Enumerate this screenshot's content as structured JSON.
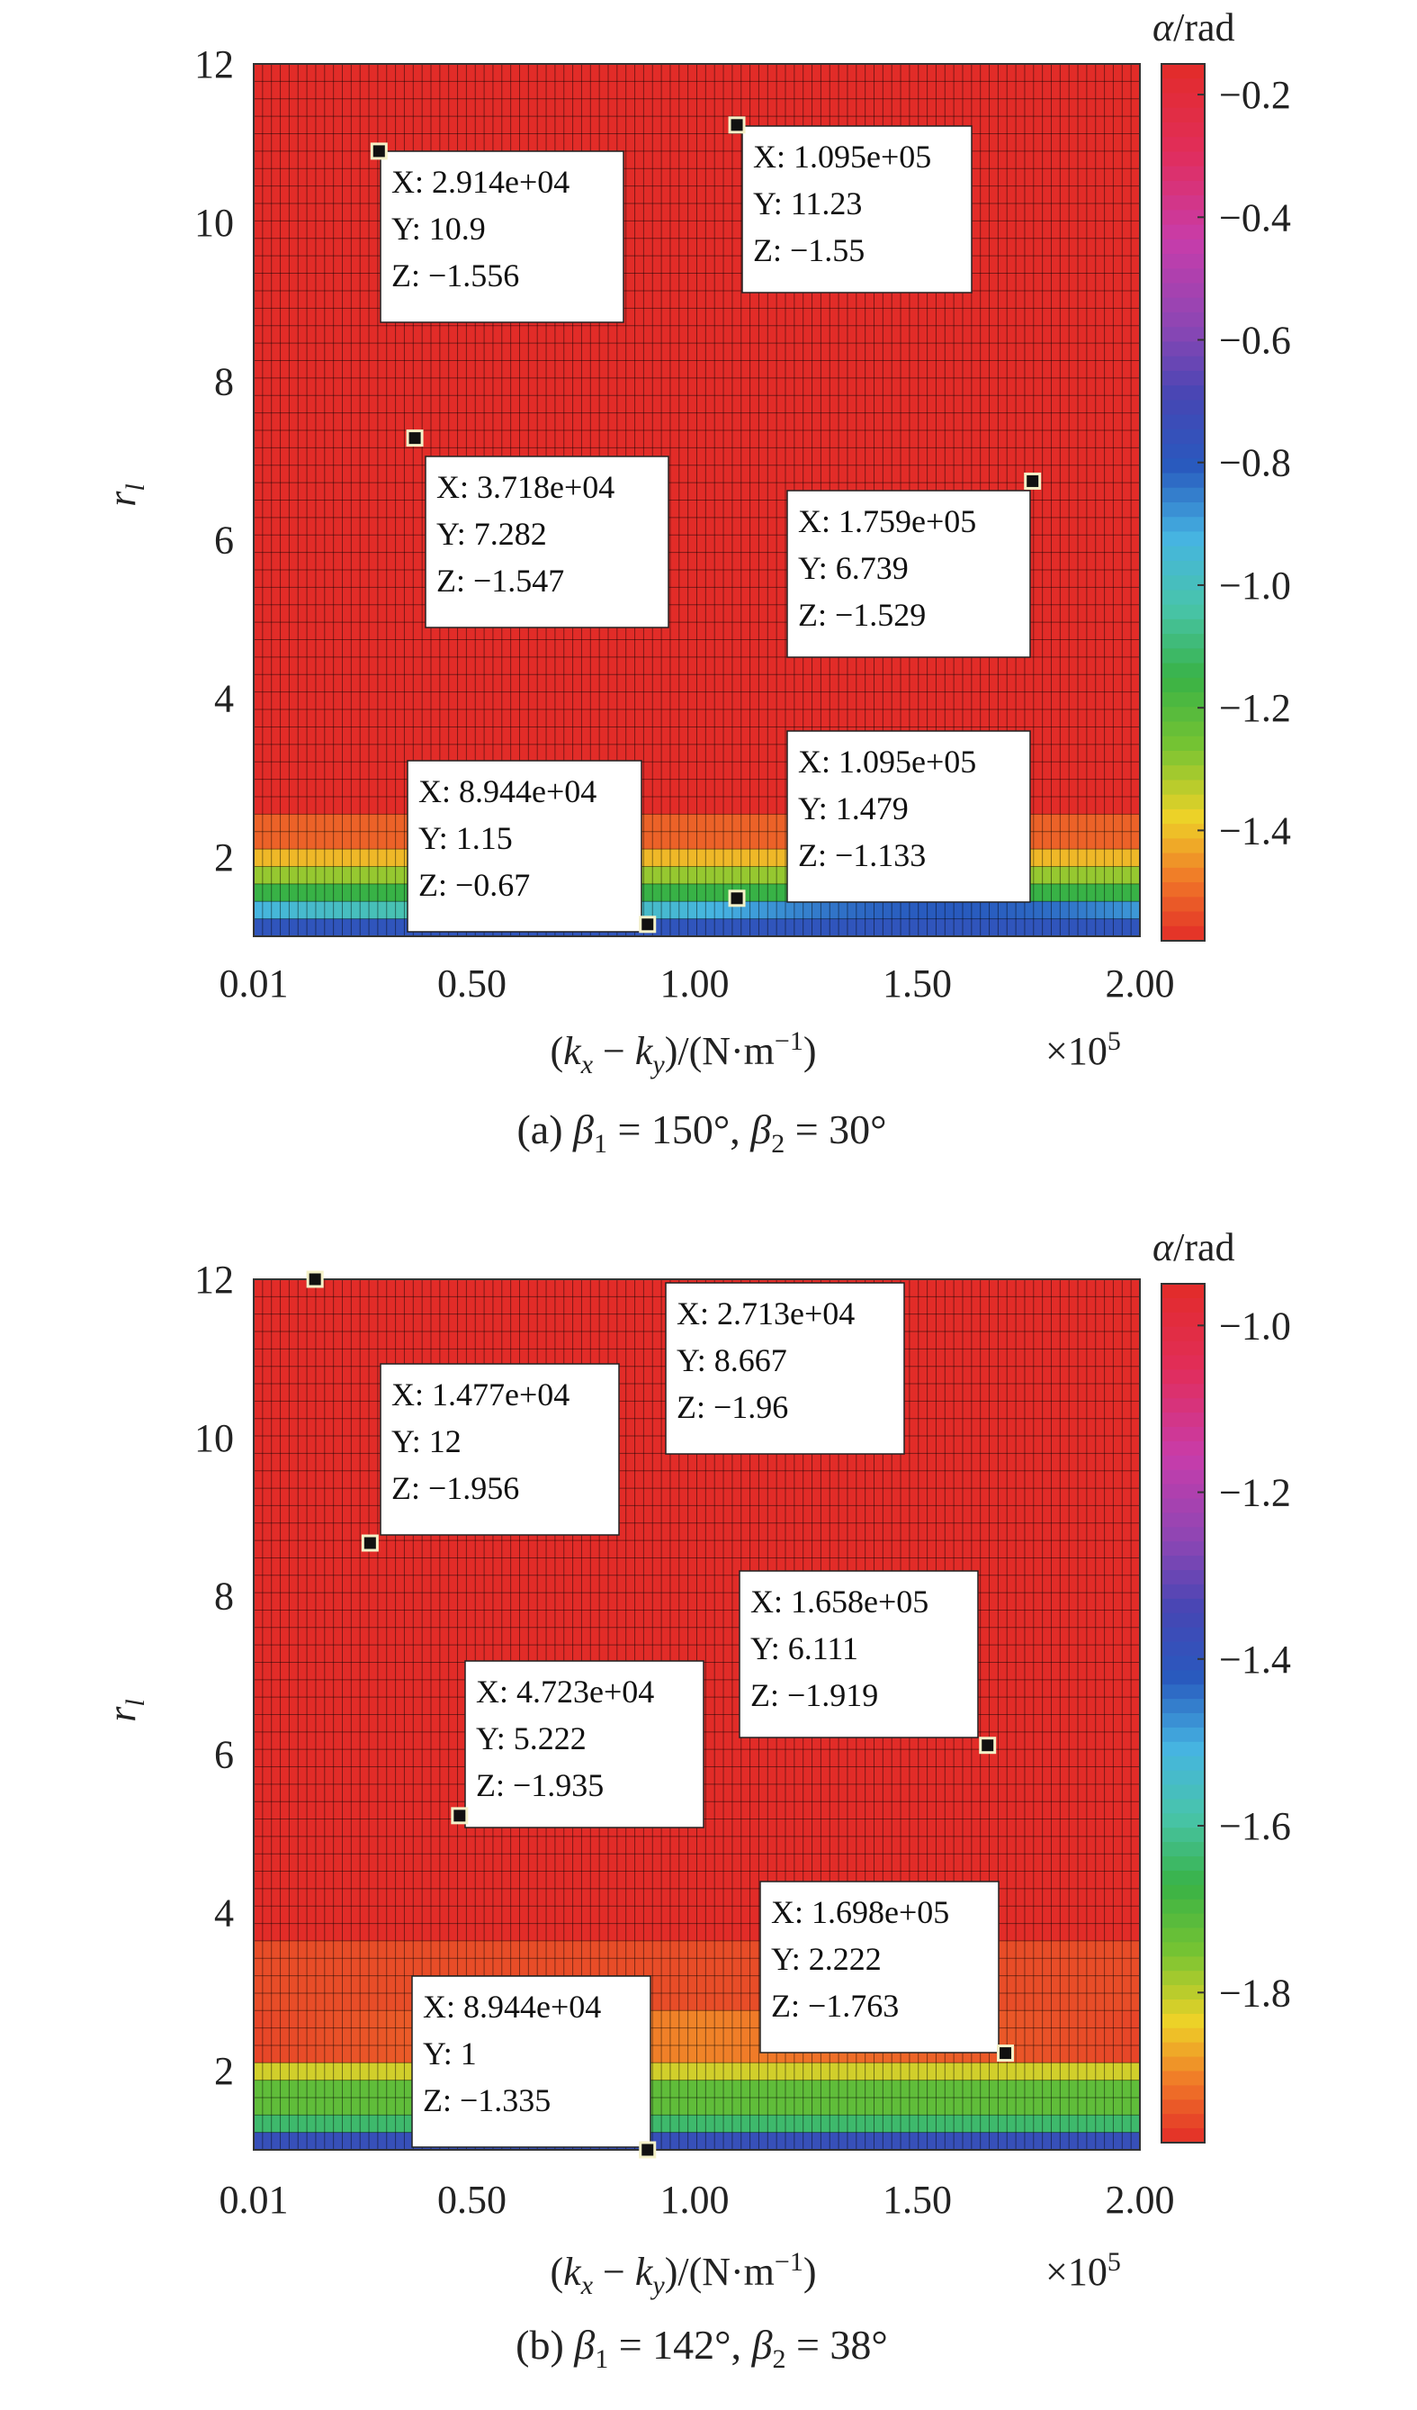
{
  "chart_data": [
    {
      "type": "heatmap",
      "caption": "(a) β1 = 150°, β2 = 30°",
      "caption_parts": {
        "prefix": "(a) ",
        "b1_sym": "β",
        "b1_sub": "1",
        "b1_val": " = 150°, ",
        "b2_sym": "β",
        "b2_sub": "2",
        "b2_val": " = 30°"
      },
      "xlabel": "(kx − ky)/(N·m−1)",
      "xlabel_parts": {
        "open": "(",
        "k": "k",
        "sub_x": "x",
        "minus": " − ",
        "sub_y": "y",
        "mid": ")/(N·m",
        "exp": "−1",
        "close": ")"
      },
      "x_multiplier": "×10^5",
      "x_multiplier_parts": {
        "base": "×10",
        "exp": "5"
      },
      "ylabel": "rl",
      "ylabel_parts": {
        "r": "r",
        "sub": "l"
      },
      "colorbar_title": "α/rad",
      "xlim": [
        0.01,
        2.0
      ],
      "ylim": [
        1.0,
        12.0
      ],
      "xticks": [
        0.01,
        0.5,
        1.0,
        1.5,
        2.0
      ],
      "xtick_labels": [
        "0.01",
        "0.50",
        "1.00",
        "1.50",
        "2.00"
      ],
      "yticks": [
        2,
        4,
        6,
        8,
        10,
        12
      ],
      "ytick_labels": [
        "2",
        "4",
        "6",
        "8",
        "10",
        "12"
      ],
      "clim": [
        -1.58,
        -0.15
      ],
      "cbticks": [
        -0.2,
        -0.4,
        -0.6,
        -0.8,
        -1.0,
        -1.2,
        -1.4
      ],
      "cbtick_labels": [
        "−0.2",
        "−0.4",
        "−0.6",
        "−0.8",
        "−1.0",
        "−1.2",
        "−1.4"
      ],
      "datatips": [
        {
          "x": 29140,
          "y": 10.9,
          "z": -1.556,
          "lines": [
            "X: 2.914e+04",
            "Y: 10.9",
            "Z: −1.556"
          ]
        },
        {
          "x": 109500,
          "y": 11.23,
          "z": -1.55,
          "lines": [
            "X: 1.095e+05",
            "Y: 11.23",
            "Z: −1.55"
          ]
        },
        {
          "x": 37180,
          "y": 7.282,
          "z": -1.547,
          "lines": [
            "X: 3.718e+04",
            "Y: 7.282",
            "Z: −1.547"
          ]
        },
        {
          "x": 175900,
          "y": 6.739,
          "z": -1.529,
          "lines": [
            "X: 1.759e+05",
            "Y: 6.739",
            "Z: −1.529"
          ]
        },
        {
          "x": 89440,
          "y": 1.15,
          "z": -0.67,
          "lines": [
            "X: 8.944e+04",
            "Y: 1.15",
            "Z: −0.67"
          ]
        },
        {
          "x": 109500,
          "y": 1.479,
          "z": -1.133,
          "lines": [
            "X: 1.095e+05",
            "Y: 1.479",
            "Z: −1.133"
          ]
        }
      ]
    },
    {
      "type": "heatmap",
      "caption": "(b) β1 = 142°, β2 = 38°",
      "caption_parts": {
        "prefix": "(b) ",
        "b1_sym": "β",
        "b1_sub": "1",
        "b1_val": " = 142°, ",
        "b2_sym": "β",
        "b2_sub": "2",
        "b2_val": " = 38°"
      },
      "xlabel": "(kx − ky)/(N·m−1)",
      "xlabel_parts": {
        "open": "(",
        "k": "k",
        "sub_x": "x",
        "minus": " − ",
        "sub_y": "y",
        "mid": ")/(N·m",
        "exp": "−1",
        "close": ")"
      },
      "x_multiplier": "×10^5",
      "x_multiplier_parts": {
        "base": "×10",
        "exp": "5"
      },
      "ylabel": "rl",
      "ylabel_parts": {
        "r": "r",
        "sub": "l"
      },
      "colorbar_title": "α/rad",
      "xlim": [
        0.01,
        2.0
      ],
      "ylim": [
        1.0,
        12.0
      ],
      "xticks": [
        0.01,
        0.5,
        1.0,
        1.5,
        2.0
      ],
      "xtick_labels": [
        "0.01",
        "0.50",
        "1.00",
        "1.50",
        "2.00"
      ],
      "yticks": [
        2,
        4,
        6,
        8,
        10,
        12
      ],
      "ytick_labels": [
        "2",
        "4",
        "6",
        "8",
        "10",
        "12"
      ],
      "clim": [
        -1.98,
        -0.95
      ],
      "cbticks": [
        -1.0,
        -1.2,
        -1.4,
        -1.6,
        -1.8
      ],
      "cbtick_labels": [
        "−1.0",
        "−1.2",
        "−1.4",
        "−1.6",
        "−1.8"
      ],
      "datatips": [
        {
          "x": 14770,
          "y": 12,
          "z": -1.956,
          "lines": [
            "X: 1.477e+04",
            "Y: 12",
            "Z: −1.956"
          ]
        },
        {
          "x": 27130,
          "y": 8.667,
          "z": -1.96,
          "lines": [
            "X: 2.713e+04",
            "Y: 8.667",
            "Z: −1.96"
          ]
        },
        {
          "x": 165800,
          "y": 6.111,
          "z": -1.919,
          "lines": [
            "X: 1.658e+05",
            "Y: 6.111",
            "Z: −1.919"
          ]
        },
        {
          "x": 47230,
          "y": 5.222,
          "z": -1.935,
          "lines": [
            "X: 4.723e+04",
            "Y: 5.222",
            "Z: −1.935"
          ]
        },
        {
          "x": 169800,
          "y": 2.222,
          "z": -1.763,
          "lines": [
            "X: 1.698e+05",
            "Y: 2.222",
            "Z: −1.763"
          ]
        },
        {
          "x": 89440,
          "y": 1,
          "z": -1.335,
          "lines": [
            "X: 8.944e+04",
            "Y: 1",
            "Z: −1.335"
          ]
        }
      ]
    }
  ]
}
